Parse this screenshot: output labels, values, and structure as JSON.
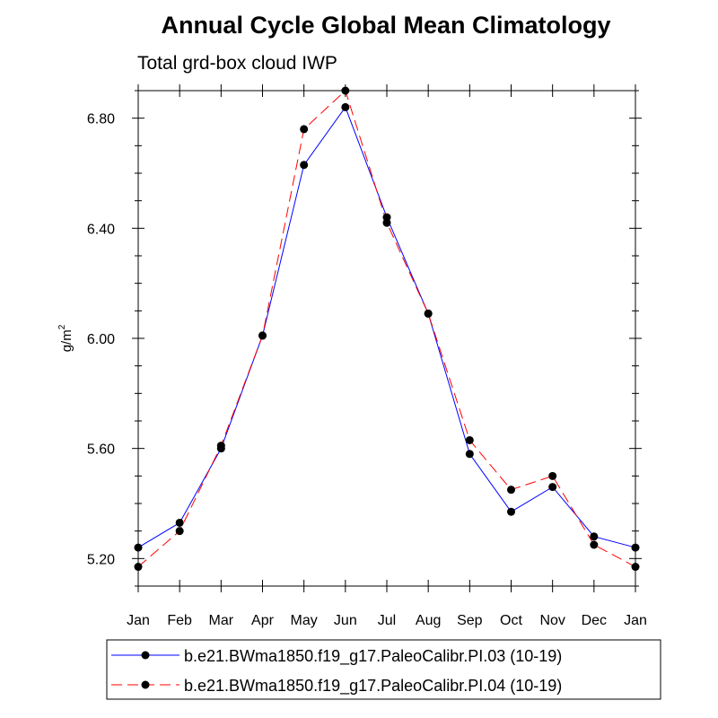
{
  "chart_data": {
    "type": "line",
    "title": "Annual Cycle Global Mean Climatology",
    "subtitle": "Total grd-box cloud IWP",
    "ylabel": "g/m",
    "ylabel_sup": "2",
    "xlabel": "",
    "ylim": [
      5.1,
      6.9
    ],
    "yticks": [
      5.2,
      5.6,
      6.0,
      6.4,
      6.8
    ],
    "ytick_labels": [
      "5.20",
      "5.60",
      "6.00",
      "6.40",
      "6.80"
    ],
    "categories": [
      "Jan",
      "Feb",
      "Mar",
      "Apr",
      "May",
      "Jun",
      "Jul",
      "Aug",
      "Sep",
      "Oct",
      "Nov",
      "Dec",
      "Jan"
    ],
    "series": [
      {
        "name": "b.e21.BWma1850.f19_g17.PaleoCalibr.PI.03 (10-19)",
        "color": "#0000ff",
        "dash": "solid",
        "values": [
          5.24,
          5.33,
          5.6,
          6.01,
          6.63,
          6.84,
          6.44,
          6.09,
          5.58,
          5.37,
          5.46,
          5.28,
          5.24
        ]
      },
      {
        "name": "b.e21.BWma1850.f19_g17.PaleoCalibr.PI.04 (10-19)",
        "color": "#ff0000",
        "dash": "dashed",
        "values": [
          5.17,
          5.3,
          5.61,
          6.01,
          6.76,
          6.9,
          6.42,
          6.09,
          5.63,
          5.45,
          5.5,
          5.25,
          5.17
        ]
      }
    ]
  }
}
